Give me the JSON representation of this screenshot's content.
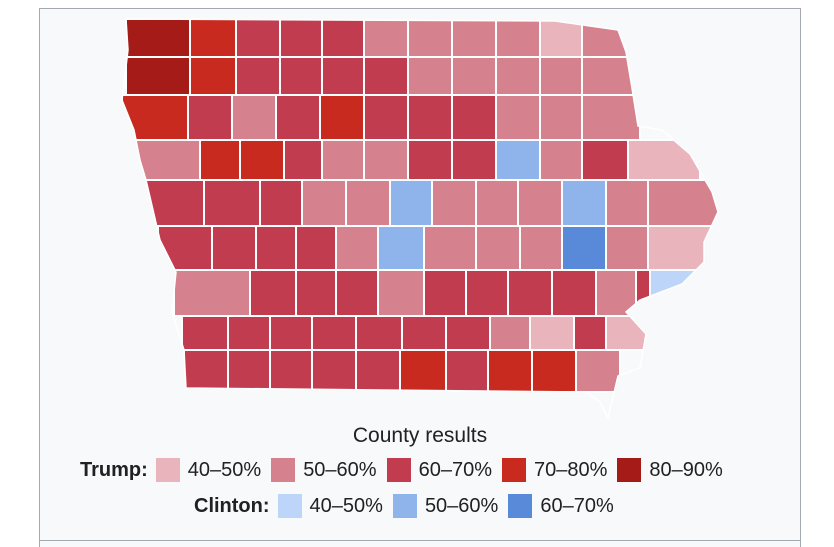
{
  "legend": {
    "caption": "County results",
    "trump": {
      "label": "Trump:",
      "items": [
        {
          "range": "40–50%",
          "color": "#eab4bd"
        },
        {
          "range": "50–60%",
          "color": "#d6818e"
        },
        {
          "range": "60–70%",
          "color": "#c23c50"
        },
        {
          "range": "70–80%",
          "color": "#c82a1f"
        },
        {
          "range": "80–90%",
          "color": "#a51b17"
        }
      ]
    },
    "clinton": {
      "label": "Clinton:",
      "items": [
        {
          "range": "40–50%",
          "color": "#bcd5f8"
        },
        {
          "range": "50–60%",
          "color": "#8fb4ec"
        },
        {
          "range": "60–70%",
          "color": "#588ad9"
        }
      ]
    }
  },
  "map": {
    "border_color": "#ffffff",
    "counties": [
      {
        "row": 0,
        "col": 0,
        "color": "#a51b17"
      },
      {
        "row": 0,
        "col": 1,
        "color": "#c82a1f"
      },
      {
        "row": 0,
        "col": 2,
        "color": "#c23c50"
      },
      {
        "row": 0,
        "col": 3,
        "color": "#c23c50"
      },
      {
        "row": 0,
        "col": 4,
        "color": "#c23c50"
      },
      {
        "row": 0,
        "col": 5,
        "color": "#d6818e"
      },
      {
        "row": 0,
        "col": 6,
        "color": "#d6818e"
      },
      {
        "row": 0,
        "col": 7,
        "color": "#d6818e"
      },
      {
        "row": 0,
        "col": 8,
        "color": "#d6818e"
      },
      {
        "row": 0,
        "col": 9,
        "color": "#eab4bd"
      },
      {
        "row": 0,
        "col": 10,
        "color": "#d6818e"
      },
      {
        "row": 1,
        "col": 0,
        "color": "#a51b17"
      },
      {
        "row": 1,
        "col": 1,
        "color": "#c82a1f"
      },
      {
        "row": 1,
        "col": 2,
        "color": "#c23c50"
      },
      {
        "row": 1,
        "col": 3,
        "color": "#c23c50"
      },
      {
        "row": 1,
        "col": 4,
        "color": "#c23c50"
      },
      {
        "row": 1,
        "col": 5,
        "color": "#c23c50"
      },
      {
        "row": 1,
        "col": 6,
        "color": "#d6818e"
      },
      {
        "row": 1,
        "col": 7,
        "color": "#d6818e"
      },
      {
        "row": 1,
        "col": 8,
        "color": "#d6818e"
      },
      {
        "row": 1,
        "col": 9,
        "color": "#d6818e"
      },
      {
        "row": 1,
        "col": 10,
        "color": "#d6818e"
      },
      {
        "row": 2,
        "col": 0,
        "color": "#c82a1f"
      },
      {
        "row": 2,
        "col": 1,
        "color": "#c23c50"
      },
      {
        "row": 2,
        "col": 2,
        "color": "#d6818e"
      },
      {
        "row": 2,
        "col": 3,
        "color": "#c23c50"
      },
      {
        "row": 2,
        "col": 4,
        "color": "#c82a1f"
      },
      {
        "row": 2,
        "col": 5,
        "color": "#c23c50"
      },
      {
        "row": 2,
        "col": 6,
        "color": "#c23c50"
      },
      {
        "row": 2,
        "col": 7,
        "color": "#c23c50"
      },
      {
        "row": 2,
        "col": 8,
        "color": "#d6818e"
      },
      {
        "row": 2,
        "col": 9,
        "color": "#d6818e"
      },
      {
        "row": 2,
        "col": 10,
        "color": "#d6818e"
      },
      {
        "row": 3,
        "col": 0,
        "color": "#d6818e"
      },
      {
        "row": 3,
        "col": 1,
        "color": "#c82a1f"
      },
      {
        "row": 3,
        "col": 2,
        "color": "#c82a1f"
      },
      {
        "row": 3,
        "col": 3,
        "color": "#c23c50"
      },
      {
        "row": 3,
        "col": 4,
        "color": "#d6818e"
      },
      {
        "row": 3,
        "col": 5,
        "color": "#d6818e"
      },
      {
        "row": 3,
        "col": 6,
        "color": "#c23c50"
      },
      {
        "row": 3,
        "col": 7,
        "color": "#c23c50"
      },
      {
        "row": 3,
        "col": 8,
        "color": "#8fb4ec"
      },
      {
        "row": 3,
        "col": 9,
        "color": "#d6818e"
      },
      {
        "row": 3,
        "col": 10,
        "color": "#c23c50"
      },
      {
        "row": 3,
        "col": 11,
        "color": "#eab4bd"
      },
      {
        "row": 4,
        "col": 0,
        "color": "#c23c50"
      },
      {
        "row": 4,
        "col": 1,
        "color": "#c23c50"
      },
      {
        "row": 4,
        "col": 2,
        "color": "#c23c50"
      },
      {
        "row": 4,
        "col": 3,
        "color": "#d6818e"
      },
      {
        "row": 4,
        "col": 4,
        "color": "#d6818e"
      },
      {
        "row": 4,
        "col": 5,
        "color": "#8fb4ec"
      },
      {
        "row": 4,
        "col": 6,
        "color": "#d6818e"
      },
      {
        "row": 4,
        "col": 7,
        "color": "#d6818e"
      },
      {
        "row": 4,
        "col": 8,
        "color": "#d6818e"
      },
      {
        "row": 4,
        "col": 9,
        "color": "#8fb4ec"
      },
      {
        "row": 4,
        "col": 10,
        "color": "#d6818e"
      },
      {
        "row": 4,
        "col": 11,
        "color": "#d6818e"
      },
      {
        "row": 5,
        "col": 0,
        "color": "#c23c50"
      },
      {
        "row": 5,
        "col": 1,
        "color": "#c23c50"
      },
      {
        "row": 5,
        "col": 2,
        "color": "#c23c50"
      },
      {
        "row": 5,
        "col": 3,
        "color": "#c23c50"
      },
      {
        "row": 5,
        "col": 4,
        "color": "#d6818e"
      },
      {
        "row": 5,
        "col": 5,
        "color": "#8fb4ec"
      },
      {
        "row": 5,
        "col": 6,
        "color": "#d6818e"
      },
      {
        "row": 5,
        "col": 7,
        "color": "#d6818e"
      },
      {
        "row": 5,
        "col": 8,
        "color": "#d6818e"
      },
      {
        "row": 5,
        "col": 9,
        "color": "#588ad9"
      },
      {
        "row": 5,
        "col": 10,
        "color": "#d6818e"
      },
      {
        "row": 5,
        "col": 11,
        "color": "#eab4bd"
      },
      {
        "row": 6,
        "col": 0,
        "color": "#d6818e"
      },
      {
        "row": 6,
        "col": 1,
        "color": "#c23c50"
      },
      {
        "row": 6,
        "col": 2,
        "color": "#c23c50"
      },
      {
        "row": 6,
        "col": 3,
        "color": "#c23c50"
      },
      {
        "row": 6,
        "col": 4,
        "color": "#d6818e"
      },
      {
        "row": 6,
        "col": 5,
        "color": "#c23c50"
      },
      {
        "row": 6,
        "col": 6,
        "color": "#c23c50"
      },
      {
        "row": 6,
        "col": 7,
        "color": "#c23c50"
      },
      {
        "row": 6,
        "col": 8,
        "color": "#c23c50"
      },
      {
        "row": 6,
        "col": 9,
        "color": "#d6818e"
      },
      {
        "row": 6,
        "col": 10,
        "color": "#c23c50"
      },
      {
        "row": 6,
        "col": 11,
        "color": "#bcd5f8"
      },
      {
        "row": 7,
        "col": 0,
        "color": "#c23c50"
      },
      {
        "row": 7,
        "col": 1,
        "color": "#c23c50"
      },
      {
        "row": 7,
        "col": 2,
        "color": "#c23c50"
      },
      {
        "row": 7,
        "col": 3,
        "color": "#c23c50"
      },
      {
        "row": 7,
        "col": 4,
        "color": "#c23c50"
      },
      {
        "row": 7,
        "col": 5,
        "color": "#c23c50"
      },
      {
        "row": 7,
        "col": 6,
        "color": "#c23c50"
      },
      {
        "row": 7,
        "col": 7,
        "color": "#d6818e"
      },
      {
        "row": 7,
        "col": 8,
        "color": "#eab4bd"
      },
      {
        "row": 7,
        "col": 9,
        "color": "#c23c50"
      },
      {
        "row": 7,
        "col": 10,
        "color": "#eab4bd"
      },
      {
        "row": 8,
        "col": 0,
        "color": "#c23c50"
      },
      {
        "row": 8,
        "col": 1,
        "color": "#c23c50"
      },
      {
        "row": 8,
        "col": 2,
        "color": "#c23c50"
      },
      {
        "row": 8,
        "col": 3,
        "color": "#c23c50"
      },
      {
        "row": 8,
        "col": 4,
        "color": "#c23c50"
      },
      {
        "row": 8,
        "col": 5,
        "color": "#c82a1f"
      },
      {
        "row": 8,
        "col": 6,
        "color": "#c23c50"
      },
      {
        "row": 8,
        "col": 7,
        "color": "#c82a1f"
      },
      {
        "row": 8,
        "col": 8,
        "color": "#c82a1f"
      },
      {
        "row": 8,
        "col": 9,
        "color": "#d6818e"
      }
    ]
  }
}
